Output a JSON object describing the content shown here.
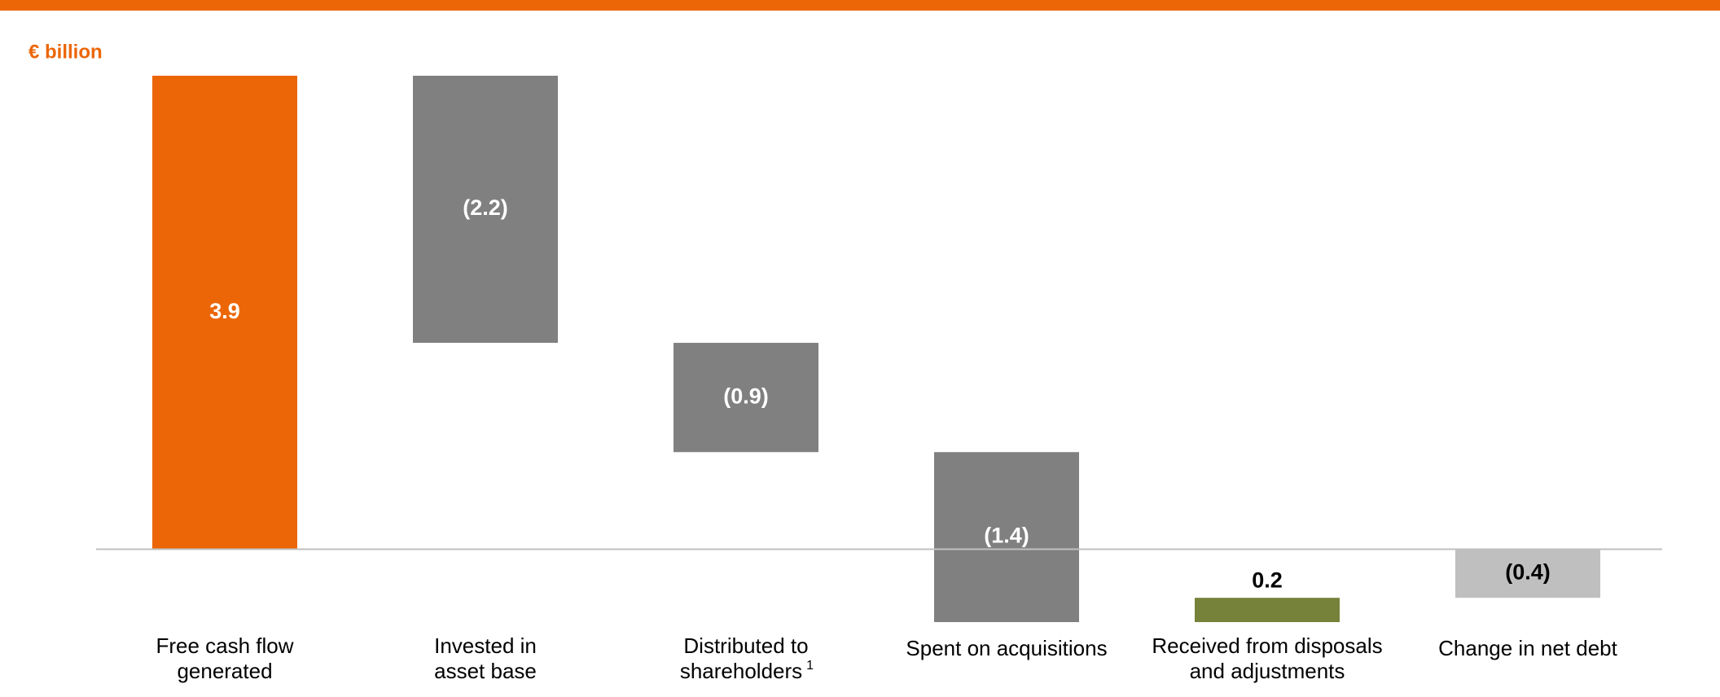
{
  "chart_data": {
    "type": "waterfall",
    "unit_label": "€ billion",
    "categories": [
      [
        "Free cash flow",
        "generated"
      ],
      [
        "Invested in",
        "asset base"
      ],
      [
        "Distributed to",
        "shareholders"
      ],
      [
        "Spent on acquisitions"
      ],
      [
        "Received from disposals",
        "and adjustments"
      ],
      [
        "Change in net debt"
      ]
    ],
    "category_notes": [
      null,
      null,
      "1",
      null,
      null,
      null
    ],
    "values": [
      3.9,
      -2.2,
      -0.9,
      -1.4,
      0.2,
      -0.4
    ],
    "value_labels": [
      "3.9",
      "(2.2)",
      "(0.9)",
      "(1.4)",
      "0.2",
      "(0.4)"
    ],
    "colors": [
      "#ec6608",
      "#808080",
      "#808080",
      "#808080",
      "#76823a",
      "#bfbfbf"
    ]
  }
}
